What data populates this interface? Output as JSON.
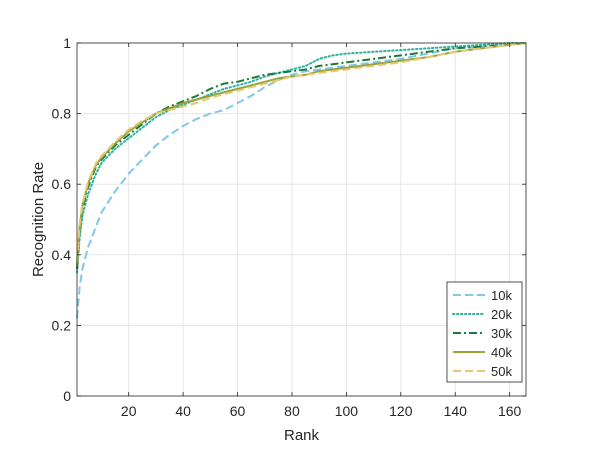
{
  "chart_data": {
    "type": "line",
    "xlabel": "Rank",
    "ylabel": "Recognition Rate",
    "xlim": [
      1,
      166
    ],
    "ylim": [
      0,
      1
    ],
    "xticks": [
      20,
      40,
      60,
      80,
      100,
      120,
      140,
      160
    ],
    "yticks": [
      0,
      0.2,
      0.4,
      0.6,
      0.8,
      1
    ],
    "grid": true,
    "legend_position": "bottom-right",
    "series": [
      {
        "name": "10k",
        "color": "#7ec8e8",
        "dash": "dashed",
        "points": [
          [
            1,
            0.22
          ],
          [
            2,
            0.31
          ],
          [
            3,
            0.36
          ],
          [
            5,
            0.42
          ],
          [
            8,
            0.48
          ],
          [
            10,
            0.52
          ],
          [
            15,
            0.58
          ],
          [
            20,
            0.63
          ],
          [
            25,
            0.67
          ],
          [
            30,
            0.71
          ],
          [
            35,
            0.74
          ],
          [
            40,
            0.765
          ],
          [
            45,
            0.785
          ],
          [
            50,
            0.8
          ],
          [
            55,
            0.81
          ],
          [
            60,
            0.83
          ],
          [
            65,
            0.85
          ],
          [
            70,
            0.875
          ],
          [
            75,
            0.895
          ],
          [
            80,
            0.91
          ],
          [
            85,
            0.92
          ],
          [
            90,
            0.925
          ],
          [
            95,
            0.93
          ],
          [
            100,
            0.935
          ],
          [
            110,
            0.945
          ],
          [
            120,
            0.955
          ],
          [
            130,
            0.97
          ],
          [
            140,
            0.985
          ],
          [
            150,
            0.99
          ],
          [
            160,
            0.995
          ],
          [
            166,
            1.0
          ]
        ]
      },
      {
        "name": "20k",
        "color": "#2bb5a0",
        "dash": "dotted",
        "points": [
          [
            1,
            0.35
          ],
          [
            2,
            0.45
          ],
          [
            3,
            0.51
          ],
          [
            5,
            0.57
          ],
          [
            8,
            0.63
          ],
          [
            10,
            0.66
          ],
          [
            15,
            0.7
          ],
          [
            20,
            0.73
          ],
          [
            25,
            0.76
          ],
          [
            30,
            0.79
          ],
          [
            35,
            0.81
          ],
          [
            40,
            0.825
          ],
          [
            45,
            0.84
          ],
          [
            50,
            0.855
          ],
          [
            55,
            0.87
          ],
          [
            60,
            0.88
          ],
          [
            65,
            0.89
          ],
          [
            70,
            0.905
          ],
          [
            75,
            0.915
          ],
          [
            80,
            0.925
          ],
          [
            85,
            0.935
          ],
          [
            90,
            0.955
          ],
          [
            95,
            0.965
          ],
          [
            100,
            0.97
          ],
          [
            110,
            0.975
          ],
          [
            120,
            0.98
          ],
          [
            130,
            0.985
          ],
          [
            140,
            0.99
          ],
          [
            150,
            0.995
          ],
          [
            160,
            1.0
          ],
          [
            166,
            1.0
          ]
        ]
      },
      {
        "name": "30k",
        "color": "#1e7a3c",
        "dash": "dashdot",
        "points": [
          [
            1,
            0.36
          ],
          [
            2,
            0.47
          ],
          [
            3,
            0.53
          ],
          [
            5,
            0.59
          ],
          [
            8,
            0.65
          ],
          [
            10,
            0.67
          ],
          [
            15,
            0.71
          ],
          [
            20,
            0.74
          ],
          [
            25,
            0.77
          ],
          [
            30,
            0.8
          ],
          [
            35,
            0.82
          ],
          [
            40,
            0.835
          ],
          [
            45,
            0.85
          ],
          [
            50,
            0.87
          ],
          [
            55,
            0.885
          ],
          [
            60,
            0.89
          ],
          [
            65,
            0.9
          ],
          [
            70,
            0.91
          ],
          [
            75,
            0.915
          ],
          [
            80,
            0.92
          ],
          [
            85,
            0.925
          ],
          [
            90,
            0.935
          ],
          [
            95,
            0.94
          ],
          [
            100,
            0.945
          ],
          [
            110,
            0.955
          ],
          [
            120,
            0.965
          ],
          [
            130,
            0.975
          ],
          [
            140,
            0.985
          ],
          [
            150,
            0.99
          ],
          [
            160,
            0.995
          ],
          [
            166,
            1.0
          ]
        ]
      },
      {
        "name": "40k",
        "color": "#9aa33a",
        "dash": "solid",
        "points": [
          [
            1,
            0.37
          ],
          [
            2,
            0.48
          ],
          [
            3,
            0.54
          ],
          [
            5,
            0.6
          ],
          [
            8,
            0.655
          ],
          [
            10,
            0.675
          ],
          [
            15,
            0.715
          ],
          [
            20,
            0.75
          ],
          [
            25,
            0.775
          ],
          [
            30,
            0.8
          ],
          [
            35,
            0.815
          ],
          [
            40,
            0.83
          ],
          [
            45,
            0.84
          ],
          [
            50,
            0.85
          ],
          [
            55,
            0.86
          ],
          [
            60,
            0.87
          ],
          [
            65,
            0.88
          ],
          [
            70,
            0.89
          ],
          [
            75,
            0.9
          ],
          [
            80,
            0.905
          ],
          [
            85,
            0.91
          ],
          [
            90,
            0.92
          ],
          [
            95,
            0.925
          ],
          [
            100,
            0.93
          ],
          [
            110,
            0.94
          ],
          [
            120,
            0.95
          ],
          [
            130,
            0.96
          ],
          [
            140,
            0.975
          ],
          [
            150,
            0.985
          ],
          [
            160,
            0.995
          ],
          [
            166,
            1.0
          ]
        ]
      },
      {
        "name": "50k",
        "color": "#e8c870",
        "dash": "dashed",
        "points": [
          [
            1,
            0.38
          ],
          [
            2,
            0.49
          ],
          [
            3,
            0.545
          ],
          [
            5,
            0.605
          ],
          [
            8,
            0.66
          ],
          [
            10,
            0.68
          ],
          [
            15,
            0.72
          ],
          [
            20,
            0.755
          ],
          [
            25,
            0.78
          ],
          [
            30,
            0.8
          ],
          [
            35,
            0.81
          ],
          [
            40,
            0.82
          ],
          [
            45,
            0.83
          ],
          [
            50,
            0.845
          ],
          [
            55,
            0.855
          ],
          [
            60,
            0.865
          ],
          [
            65,
            0.875
          ],
          [
            70,
            0.885
          ],
          [
            75,
            0.895
          ],
          [
            80,
            0.905
          ],
          [
            85,
            0.91
          ],
          [
            90,
            0.915
          ],
          [
            95,
            0.92
          ],
          [
            100,
            0.925
          ],
          [
            110,
            0.935
          ],
          [
            120,
            0.945
          ],
          [
            130,
            0.96
          ],
          [
            140,
            0.975
          ],
          [
            150,
            0.985
          ],
          [
            160,
            0.995
          ],
          [
            166,
            1.0
          ]
        ]
      }
    ]
  }
}
